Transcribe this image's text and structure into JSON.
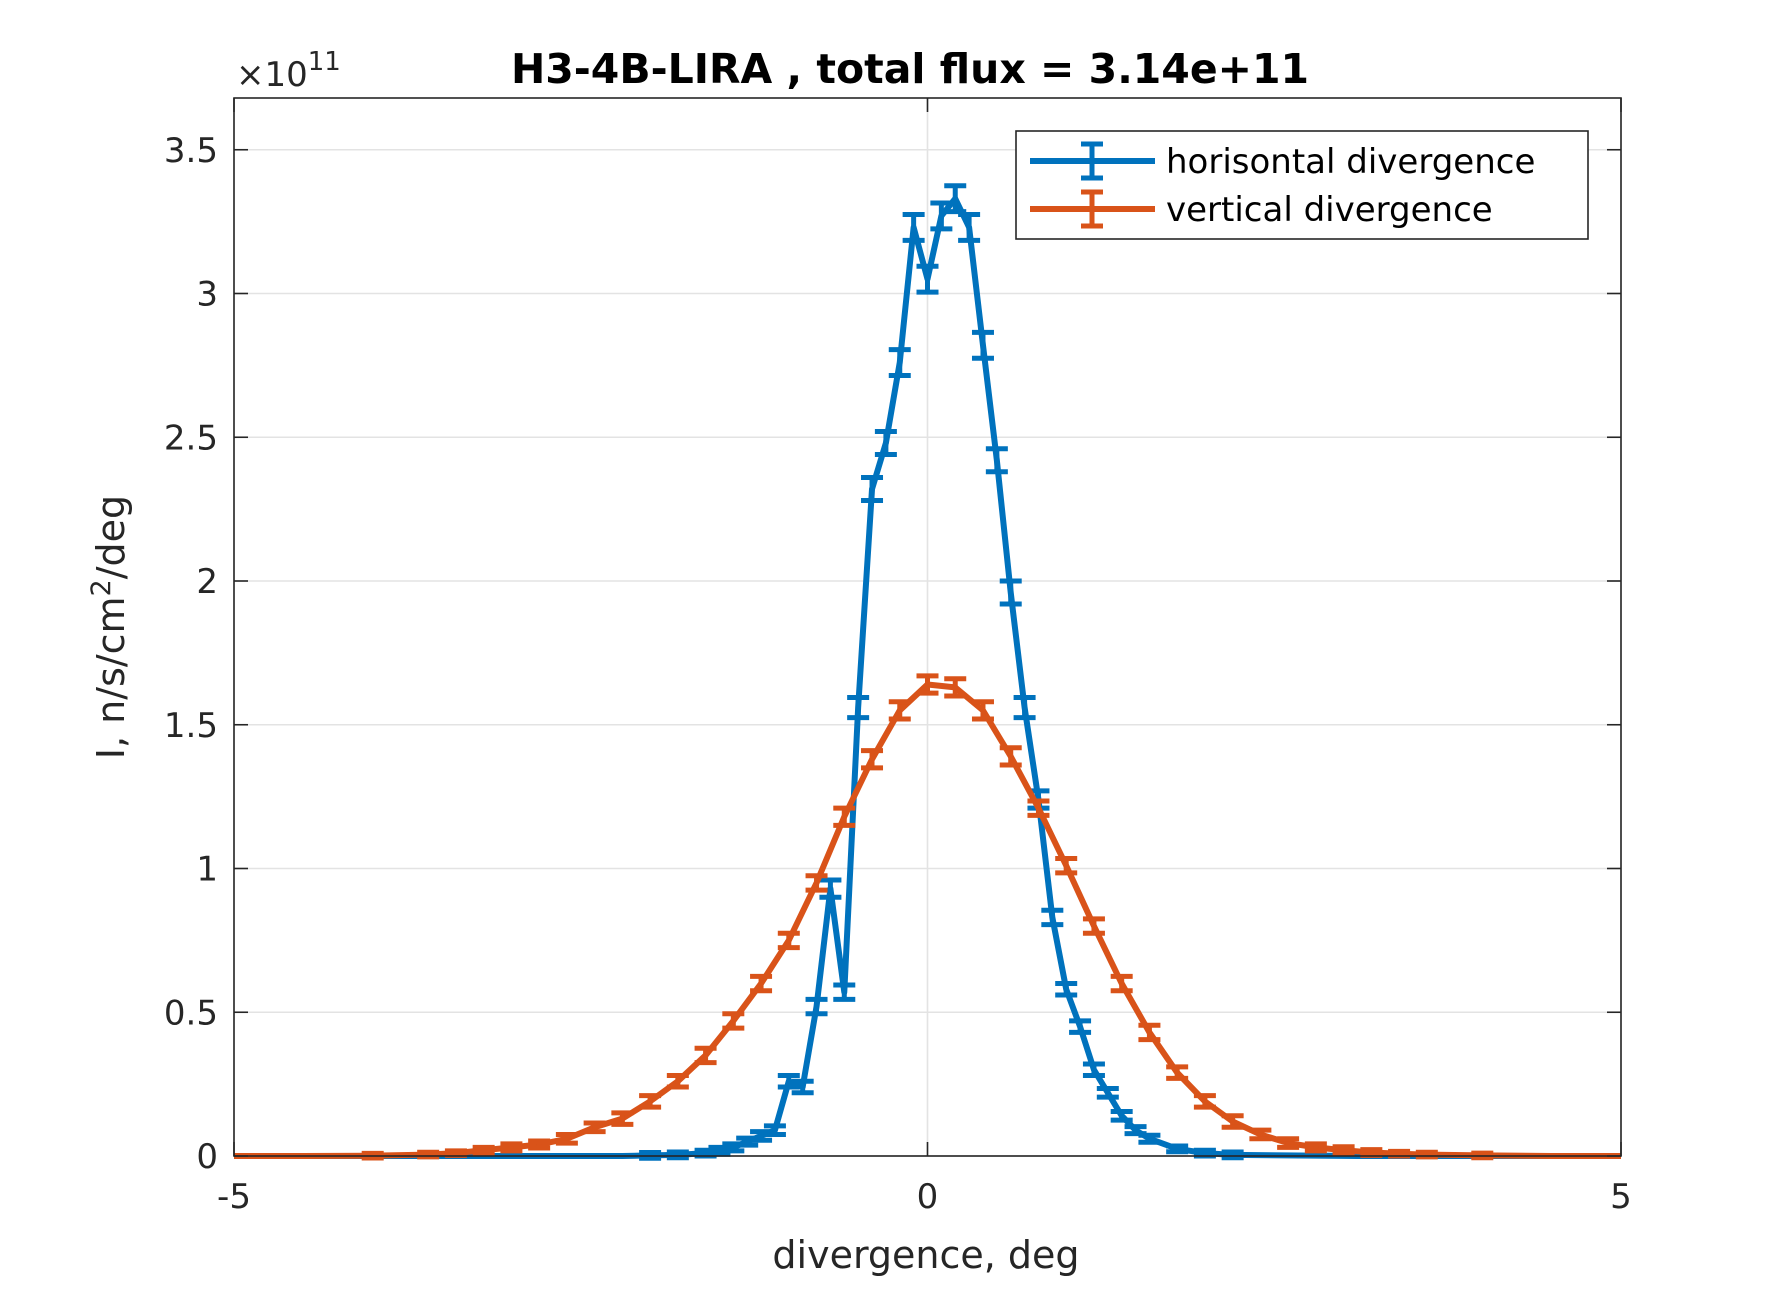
{
  "chart_data": {
    "type": "line",
    "title": "H3-4B-LIRA , total flux =  3.14e+11",
    "xlabel": "divergence, deg",
    "ylabel": "I, n/s/cm²/deg",
    "ylabel_parts": {
      "main": "I, n/s/cm",
      "sup": "2",
      "tail": "/deg"
    },
    "exponent_label": {
      "base": "×10",
      "power": "11"
    },
    "xlim": [
      -5,
      5
    ],
    "ylim": [
      0,
      3.68
    ],
    "y_scale_factor": 100000000000.0,
    "xticks": [
      -5,
      0,
      5
    ],
    "xtick_labels": [
      "-5",
      "0",
      "5"
    ],
    "yticks": [
      0,
      0.5,
      1,
      1.5,
      2,
      2.5,
      3,
      3.5
    ],
    "ytick_labels": [
      "0",
      "0.5",
      "1",
      "1.5",
      "2",
      "2.5",
      "3",
      "3.5"
    ],
    "grid": true,
    "legend_position": "top-right",
    "series": [
      {
        "name": "horisontal divergence",
        "color": "#0072BD",
        "x": [
          -5.0,
          -3.1,
          -2.2,
          -2.0,
          -1.8,
          -1.6,
          -1.5,
          -1.4,
          -1.3,
          -1.2,
          -1.1,
          -1.0,
          -0.9,
          -0.8,
          -0.7,
          -0.6,
          -0.5,
          -0.4,
          -0.3,
          -0.2,
          -0.1,
          0.0,
          0.1,
          0.2,
          0.3,
          0.4,
          0.5,
          0.6,
          0.7,
          0.8,
          0.9,
          1.0,
          1.1,
          1.2,
          1.3,
          1.4,
          1.5,
          1.6,
          1.8,
          2.0,
          2.2,
          3.1,
          5.0
        ],
        "y": [
          0.0,
          0.0,
          0.0,
          0.002,
          0.004,
          0.01,
          0.018,
          0.03,
          0.05,
          0.07,
          0.09,
          0.26,
          0.24,
          0.52,
          0.93,
          0.57,
          1.56,
          2.32,
          2.48,
          2.76,
          3.23,
          3.05,
          3.27,
          3.33,
          3.23,
          2.82,
          2.42,
          1.96,
          1.56,
          1.24,
          0.83,
          0.58,
          0.45,
          0.3,
          0.22,
          0.14,
          0.09,
          0.06,
          0.025,
          0.01,
          0.004,
          0.0,
          0.0
        ],
        "error": [
          0,
          0,
          0,
          0.01,
          0.01,
          0.01,
          0.012,
          0.012,
          0.012,
          0.015,
          0.015,
          0.02,
          0.02,
          0.025,
          0.03,
          0.025,
          0.035,
          0.04,
          0.04,
          0.045,
          0.045,
          0.045,
          0.045,
          0.045,
          0.045,
          0.045,
          0.04,
          0.04,
          0.035,
          0.03,
          0.025,
          0.02,
          0.02,
          0.02,
          0.015,
          0.015,
          0.012,
          0.012,
          0.01,
          0.01,
          0.01,
          0,
          0
        ]
      },
      {
        "name": "vertical divergence",
        "color": "#D95319",
        "x": [
          -5.0,
          -4.5,
          -4.0,
          -3.6,
          -3.4,
          -3.2,
          -3.0,
          -2.8,
          -2.6,
          -2.4,
          -2.2,
          -2.0,
          -1.8,
          -1.6,
          -1.4,
          -1.2,
          -1.0,
          -0.8,
          -0.6,
          -0.4,
          -0.2,
          0.0,
          0.2,
          0.4,
          0.6,
          0.8,
          1.0,
          1.2,
          1.4,
          1.6,
          1.8,
          2.0,
          2.2,
          2.4,
          2.6,
          2.8,
          3.0,
          3.2,
          3.4,
          3.6,
          4.0,
          4.5,
          5.0
        ],
        "y": [
          0.0,
          0.0,
          0.001,
          0.005,
          0.01,
          0.02,
          0.03,
          0.04,
          0.06,
          0.1,
          0.13,
          0.19,
          0.26,
          0.35,
          0.47,
          0.6,
          0.75,
          0.95,
          1.18,
          1.38,
          1.55,
          1.64,
          1.63,
          1.55,
          1.39,
          1.21,
          1.01,
          0.8,
          0.6,
          0.43,
          0.29,
          0.19,
          0.12,
          0.075,
          0.045,
          0.03,
          0.02,
          0.012,
          0.008,
          0.005,
          0.002,
          0.0,
          0.0
        ],
        "error": [
          0,
          0,
          0.008,
          0.008,
          0.008,
          0.01,
          0.012,
          0.012,
          0.015,
          0.015,
          0.02,
          0.02,
          0.02,
          0.025,
          0.025,
          0.025,
          0.025,
          0.025,
          0.03,
          0.03,
          0.03,
          0.03,
          0.03,
          0.03,
          0.03,
          0.025,
          0.025,
          0.025,
          0.025,
          0.025,
          0.02,
          0.02,
          0.02,
          0.015,
          0.015,
          0.012,
          0.012,
          0.01,
          0.008,
          0.008,
          0.008,
          0,
          0
        ]
      }
    ]
  }
}
